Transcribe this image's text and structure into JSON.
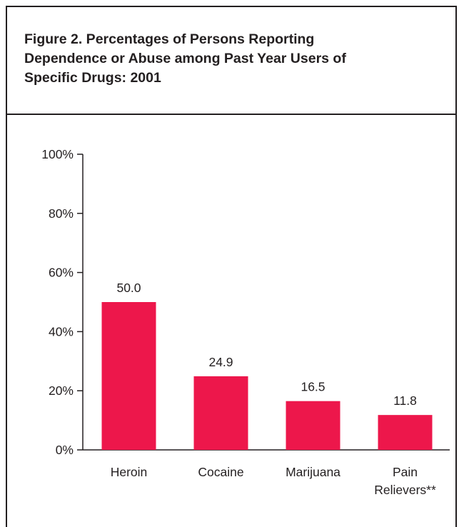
{
  "figure": {
    "title_lines": [
      "Figure 2.  Percentages of Persons Reporting",
      "Dependence or Abuse among Past Year Users of",
      "Specific Drugs: 2001"
    ]
  },
  "colors": {
    "bar": "#ed174b",
    "axis": "#231f20"
  },
  "chart_data": {
    "type": "bar",
    "title": "Percentages of Persons Reporting Dependence or Abuse among Past Year Users of Specific Drugs: 2001",
    "categories": [
      [
        "Heroin"
      ],
      [
        "Cocaine"
      ],
      [
        "Marijuana"
      ],
      [
        "Pain",
        "Relievers**"
      ]
    ],
    "values": [
      50.0,
      24.9,
      16.5,
      11.8
    ],
    "value_labels": [
      "50.0",
      "24.9",
      "16.5",
      "11.8"
    ],
    "ylim": [
      0,
      100
    ],
    "yticks": [
      0,
      20,
      40,
      60,
      80,
      100
    ],
    "ytick_labels": [
      "0%",
      "20%",
      "40%",
      "60%",
      "80%",
      "100%"
    ],
    "xlabel": "",
    "ylabel": "",
    "grid": false,
    "legend": "none"
  }
}
